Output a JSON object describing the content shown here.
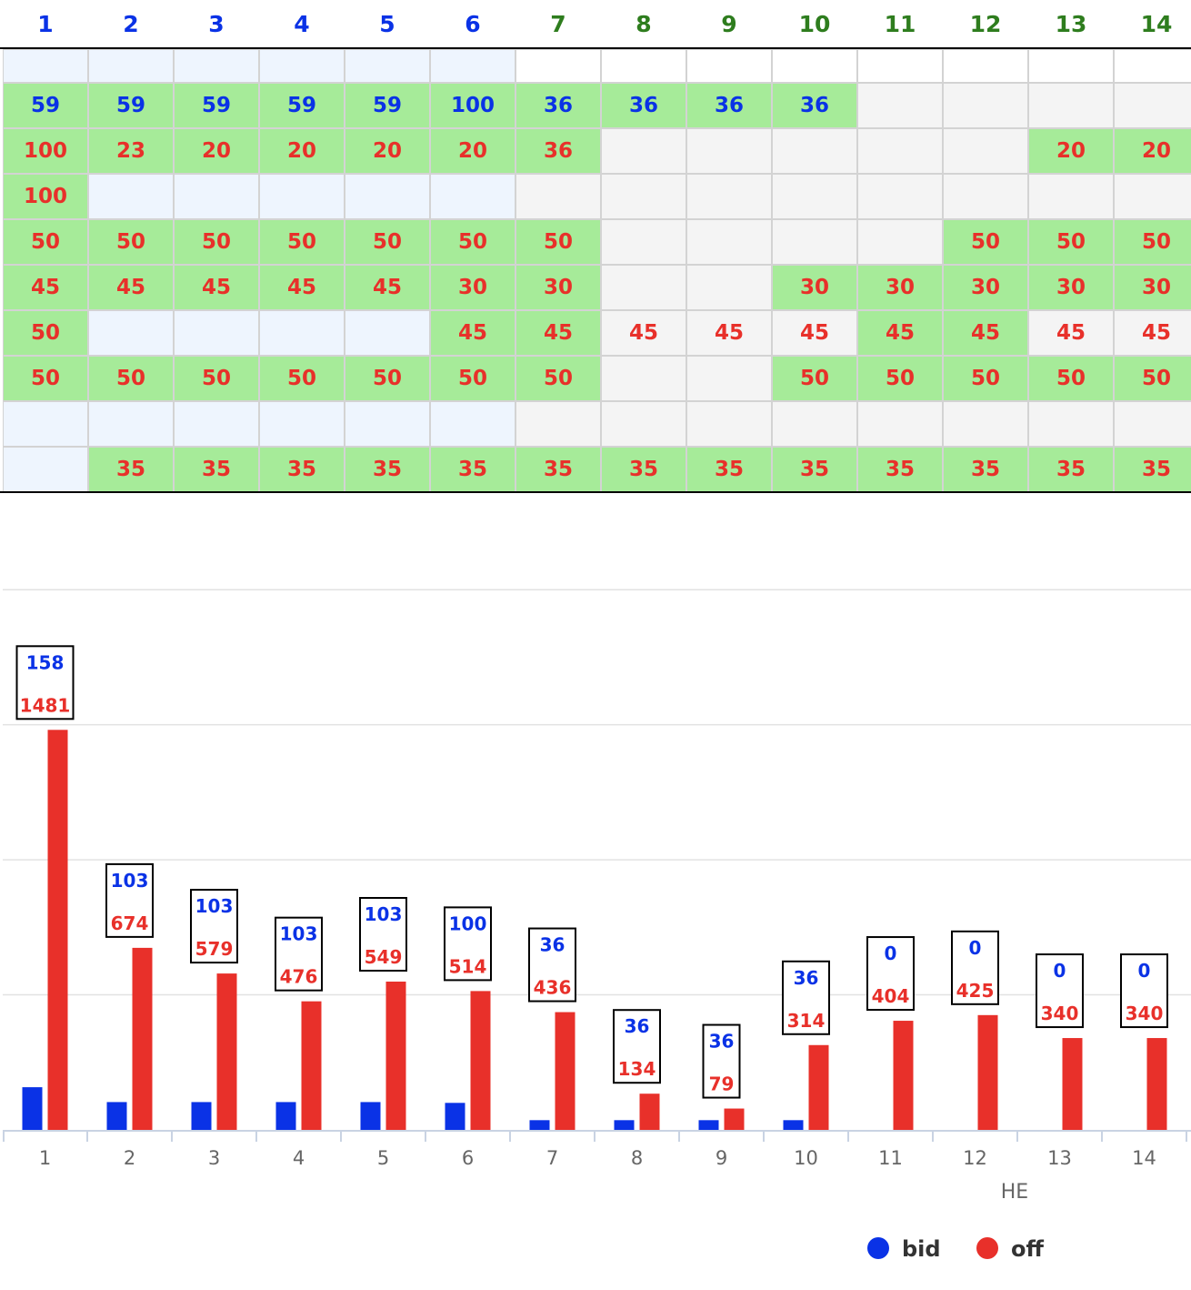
{
  "colors": {
    "blue": "#0a32e6",
    "red": "#e8302a",
    "green_text": "#2e7d1e",
    "cell_green": "#a6eb99",
    "cell_blue": "#eef5fe",
    "cell_gray": "#f4f4f4"
  },
  "grid": {
    "headers": [
      {
        "label": "1",
        "color": "blue"
      },
      {
        "label": "2",
        "color": "blue"
      },
      {
        "label": "3",
        "color": "blue"
      },
      {
        "label": "4",
        "color": "blue"
      },
      {
        "label": "5",
        "color": "blue"
      },
      {
        "label": "6",
        "color": "blue"
      },
      {
        "label": "7",
        "color": "green"
      },
      {
        "label": "8",
        "color": "green"
      },
      {
        "label": "9",
        "color": "green"
      },
      {
        "label": "10",
        "color": "green"
      },
      {
        "label": "11",
        "color": "green"
      },
      {
        "label": "12",
        "color": "green"
      },
      {
        "label": "13",
        "color": "green"
      },
      {
        "label": "14",
        "color": "green"
      }
    ],
    "rows": [
      {
        "values": [
          "",
          "",
          "",
          "",
          "",
          "",
          "",
          "",
          "",
          "",
          "",
          "",
          "",
          ""
        ],
        "bg": [
          "b",
          "b",
          "b",
          "b",
          "b",
          "b",
          "w",
          "w",
          "w",
          "w",
          "w",
          "w",
          "w",
          "w"
        ],
        "text": "red"
      },
      {
        "values": [
          "59",
          "59",
          "59",
          "59",
          "59",
          "100",
          "36",
          "36",
          "36",
          "36",
          "",
          "",
          "",
          ""
        ],
        "bg": [
          "g",
          "g",
          "g",
          "g",
          "g",
          "g",
          "g",
          "g",
          "g",
          "g",
          "y",
          "y",
          "y",
          "y"
        ],
        "text": "blue"
      },
      {
        "values": [
          "100",
          "23",
          "20",
          "20",
          "20",
          "20",
          "36",
          "",
          "",
          "",
          "",
          "",
          "20",
          "20"
        ],
        "bg": [
          "g",
          "g",
          "g",
          "g",
          "g",
          "g",
          "g",
          "y",
          "y",
          "y",
          "y",
          "y",
          "g",
          "g"
        ],
        "text": "red"
      },
      {
        "values": [
          "100",
          "",
          "",
          "",
          "",
          "",
          "",
          "",
          "",
          "",
          "",
          "",
          "",
          ""
        ],
        "bg": [
          "g",
          "b",
          "b",
          "b",
          "b",
          "b",
          "y",
          "y",
          "y",
          "y",
          "y",
          "y",
          "y",
          "y"
        ],
        "text": "red"
      },
      {
        "values": [
          "50",
          "50",
          "50",
          "50",
          "50",
          "50",
          "50",
          "",
          "",
          "",
          "",
          "50",
          "50",
          "50"
        ],
        "bg": [
          "g",
          "g",
          "g",
          "g",
          "g",
          "g",
          "g",
          "y",
          "y",
          "y",
          "y",
          "g",
          "g",
          "g"
        ],
        "text": "red"
      },
      {
        "values": [
          "45",
          "45",
          "45",
          "45",
          "45",
          "30",
          "30",
          "",
          "",
          "30",
          "30",
          "30",
          "30",
          "30"
        ],
        "bg": [
          "g",
          "g",
          "g",
          "g",
          "g",
          "g",
          "g",
          "y",
          "y",
          "g",
          "g",
          "g",
          "g",
          "g"
        ],
        "text": "red"
      },
      {
        "values": [
          "50",
          "",
          "",
          "",
          "",
          "45",
          "45",
          "45",
          "45",
          "45",
          "45",
          "45",
          "45",
          "45"
        ],
        "bg": [
          "g",
          "b",
          "b",
          "b",
          "b",
          "g",
          "g",
          "y",
          "y",
          "y",
          "g",
          "g",
          "y",
          "y"
        ],
        "text": "red"
      },
      {
        "values": [
          "50",
          "50",
          "50",
          "50",
          "50",
          "50",
          "50",
          "",
          "",
          "50",
          "50",
          "50",
          "50",
          "50"
        ],
        "bg": [
          "g",
          "g",
          "g",
          "g",
          "g",
          "g",
          "g",
          "y",
          "y",
          "g",
          "g",
          "g",
          "g",
          "g"
        ],
        "text": "red"
      },
      {
        "values": [
          "",
          "",
          "",
          "",
          "",
          "",
          "",
          "",
          "",
          "",
          "",
          "",
          "",
          ""
        ],
        "bg": [
          "b",
          "b",
          "b",
          "b",
          "b",
          "b",
          "y",
          "y",
          "y",
          "y",
          "y",
          "y",
          "y",
          "y"
        ],
        "text": "red"
      },
      {
        "values": [
          "",
          "35",
          "35",
          "35",
          "35",
          "35",
          "35",
          "35",
          "35",
          "35",
          "35",
          "35",
          "35",
          "35"
        ],
        "bg": [
          "b",
          "g",
          "g",
          "g",
          "g",
          "g",
          "g",
          "g",
          "g",
          "g",
          "g",
          "g",
          "g",
          "g"
        ],
        "text": "red"
      }
    ]
  },
  "chart_data": {
    "type": "bar",
    "categories": [
      "1",
      "2",
      "3",
      "4",
      "5",
      "6",
      "7",
      "8",
      "9",
      "10",
      "11",
      "12",
      "13",
      "14"
    ],
    "xlabel": "HE",
    "ylabel": "",
    "ylim": [
      0,
      2000
    ],
    "grid": true,
    "legend_position": "bottom-right",
    "series": [
      {
        "name": "bid",
        "color": "#0a32e6",
        "values": [
          158,
          103,
          103,
          103,
          103,
          100,
          36,
          36,
          36,
          36,
          0,
          0,
          0,
          0
        ]
      },
      {
        "name": "off",
        "color": "#e8302a",
        "values": [
          1481,
          674,
          579,
          476,
          549,
          514,
          436,
          134,
          79,
          314,
          404,
          425,
          340,
          340
        ]
      }
    ]
  },
  "legend": {
    "bid": "bid",
    "off": "off"
  }
}
